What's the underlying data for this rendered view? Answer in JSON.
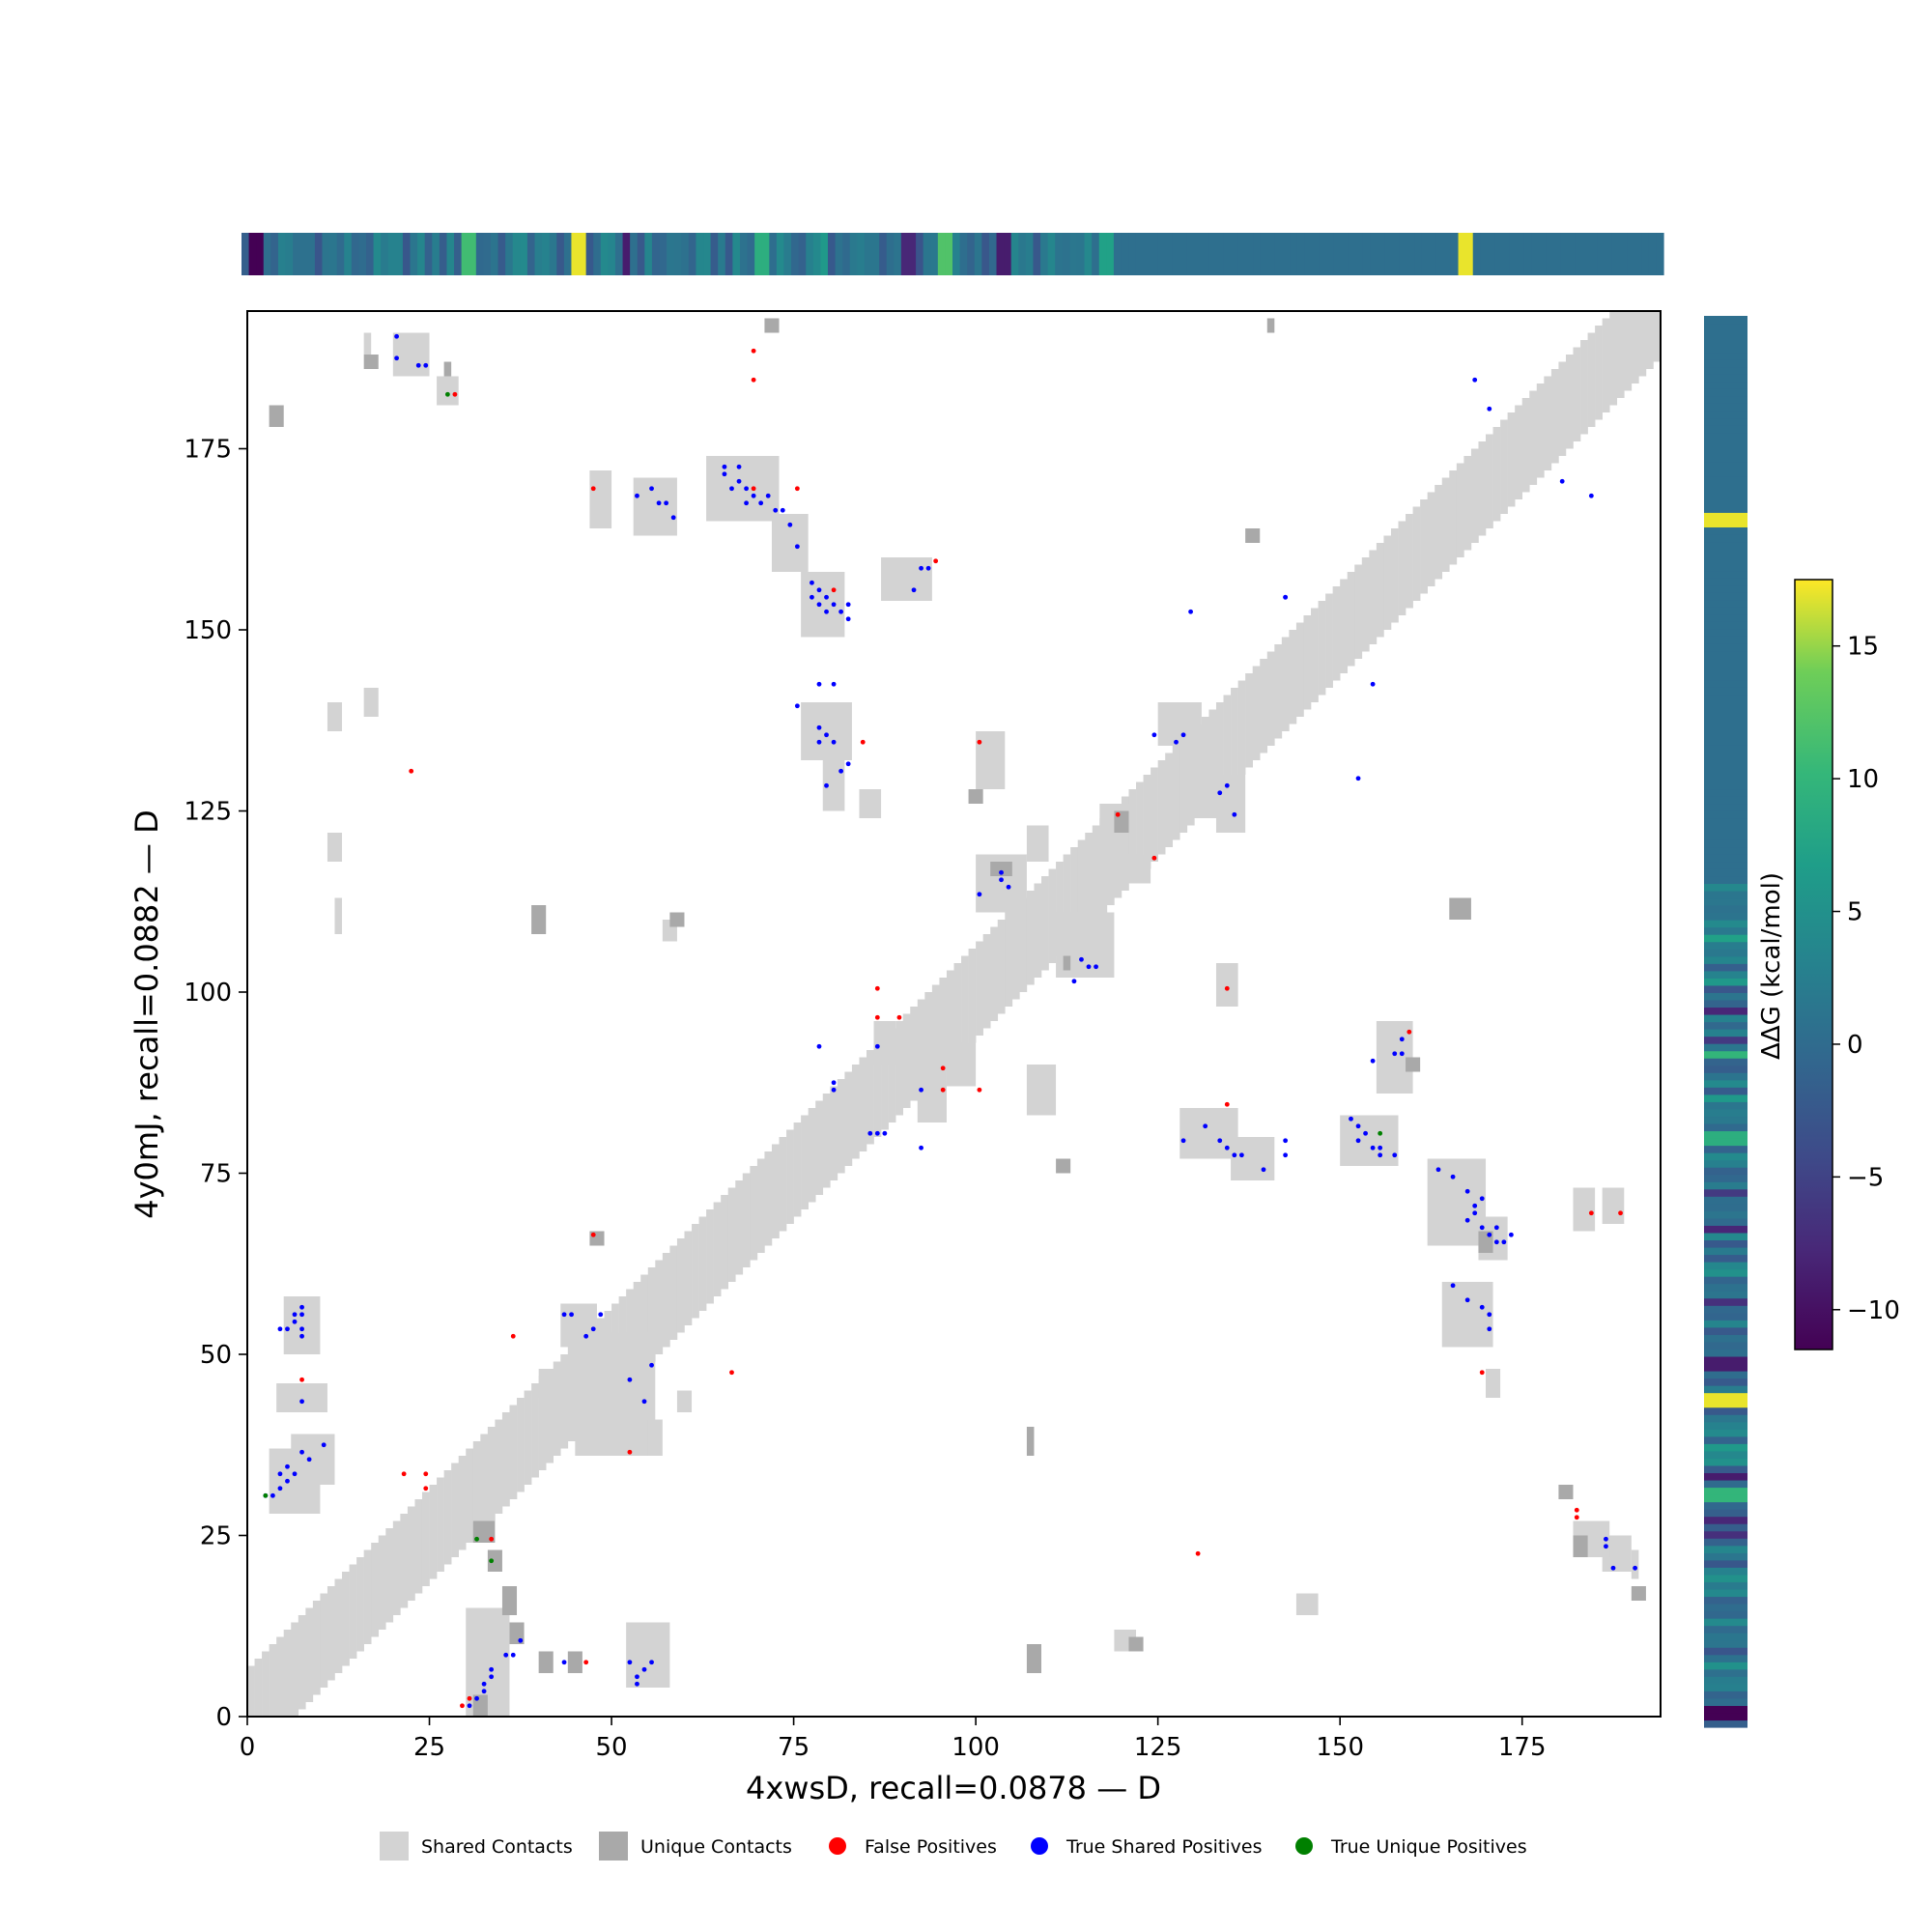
{
  "chart_data": {
    "type": "heatmap",
    "subtype": "contact-map",
    "xlabel": "4xwsD, recall=0.0878 — D",
    "ylabel": "4y0mJ, recall=0.0882 — D",
    "xlim": [
      0,
      194
    ],
    "ylim": [
      0,
      194
    ],
    "x_ticks": [
      0,
      25,
      50,
      75,
      100,
      125,
      150,
      175
    ],
    "y_ticks": [
      0,
      25,
      50,
      75,
      100,
      125,
      150,
      175
    ],
    "colorbar": {
      "label": "ΔΔG (kcal/mol)",
      "range": [
        -11.5,
        17.5
      ],
      "ticks": [
        -10,
        -5,
        0,
        5,
        10,
        15
      ],
      "colormap": "viridis"
    },
    "legend": {
      "placement": "bottom",
      "entries": [
        {
          "label": "Shared Contacts",
          "marker": "square",
          "color": "#d3d3d3"
        },
        {
          "label": "Unique Contacts",
          "marker": "square",
          "color": "#a9a9a9"
        },
        {
          "label": "False Positives",
          "marker": "circle",
          "color": "#ff0000"
        },
        {
          "label": "True Shared Positives",
          "marker": "circle",
          "color": "#0000ff"
        },
        {
          "label": "True Unique Positives",
          "marker": "circle",
          "color": "#008000"
        }
      ]
    },
    "colors": {
      "shared": "#d3d3d3",
      "unique": "#a9a9a9",
      "false_pos": "#ff0000",
      "true_shared": "#0000ff",
      "true_unique": "#008000"
    },
    "diagonal_band": {
      "from": 0,
      "to": 194,
      "half_width": 6
    },
    "shared_blocks": [
      [
        30,
        0,
        35,
        14
      ],
      [
        52,
        4,
        57,
        12
      ],
      [
        45,
        36,
        55,
        52
      ],
      [
        3,
        28,
        9,
        36
      ],
      [
        5,
        50,
        9,
        57
      ],
      [
        4,
        42,
        10,
        45
      ],
      [
        6,
        32,
        11,
        38
      ],
      [
        12,
        108,
        12,
        112
      ],
      [
        11,
        118,
        12,
        121
      ],
      [
        16,
        138,
        17,
        141
      ],
      [
        11,
        136,
        12,
        139
      ],
      [
        20,
        185,
        24,
        190
      ],
      [
        26,
        181,
        28,
        184
      ],
      [
        16,
        188,
        16,
        190
      ],
      [
        63,
        165,
        72,
        173
      ],
      [
        72,
        158,
        76,
        165
      ],
      [
        53,
        163,
        58,
        170
      ],
      [
        47,
        170,
        48,
        171
      ],
      [
        76,
        149,
        81,
        157
      ],
      [
        87,
        154,
        93,
        159
      ],
      [
        76,
        132,
        82,
        139
      ],
      [
        79,
        125,
        81,
        131
      ],
      [
        84,
        124,
        86,
        127
      ],
      [
        100,
        128,
        103,
        135
      ],
      [
        111,
        102,
        118,
        110
      ],
      [
        100,
        111,
        106,
        118
      ],
      [
        107,
        118,
        109,
        122
      ],
      [
        128,
        77,
        135,
        83
      ],
      [
        135,
        74,
        140,
        79
      ],
      [
        150,
        76,
        157,
        82
      ],
      [
        155,
        86,
        159,
        95
      ],
      [
        162,
        65,
        169,
        76
      ],
      [
        169,
        63,
        172,
        68
      ],
      [
        164,
        51,
        170,
        59
      ],
      [
        170,
        44,
        171,
        47
      ],
      [
        125,
        134,
        130,
        139
      ],
      [
        133,
        122,
        136,
        129
      ],
      [
        117,
        122,
        120,
        125
      ],
      [
        120,
        115,
        123,
        118
      ],
      [
        133,
        98,
        135,
        103
      ],
      [
        128,
        124,
        133,
        126
      ],
      [
        182,
        67,
        184,
        72
      ],
      [
        186,
        68,
        188,
        72
      ],
      [
        190,
        19,
        190,
        22
      ],
      [
        186,
        20,
        189,
        24
      ],
      [
        182,
        22,
        186,
        26
      ],
      [
        144,
        14,
        146,
        16
      ],
      [
        119,
        9,
        121,
        11
      ],
      [
        47,
        164,
        49,
        171
      ],
      [
        57,
        107,
        58,
        109
      ],
      [
        86,
        90,
        88,
        95
      ],
      [
        92,
        82,
        95,
        88
      ],
      [
        96,
        87,
        99,
        92
      ],
      [
        107,
        83,
        110,
        89
      ],
      [
        40,
        44,
        42,
        47
      ],
      [
        43,
        51,
        47,
        56
      ],
      [
        55,
        36,
        56,
        40
      ],
      [
        59,
        42,
        60,
        44
      ]
    ],
    "unique_blocks": [
      [
        3,
        178,
        4,
        180
      ],
      [
        16,
        186,
        17,
        187
      ],
      [
        27,
        185,
        27,
        186
      ],
      [
        71,
        191,
        72,
        192
      ],
      [
        140,
        191,
        140,
        192
      ],
      [
        112,
        103,
        112,
        104
      ],
      [
        165,
        110,
        167,
        112
      ],
      [
        137,
        162,
        138,
        163
      ],
      [
        99,
        126,
        100,
        127
      ],
      [
        119,
        122,
        120,
        124
      ],
      [
        39,
        108,
        40,
        111
      ],
      [
        58,
        109,
        59,
        110
      ],
      [
        111,
        75,
        112,
        76
      ],
      [
        107,
        36,
        107,
        39
      ],
      [
        107,
        6,
        108,
        9
      ],
      [
        121,
        9,
        122,
        10
      ],
      [
        31,
        24,
        33,
        26
      ],
      [
        33,
        20,
        34,
        22
      ],
      [
        35,
        14,
        36,
        17
      ],
      [
        36,
        10,
        37,
        12
      ],
      [
        40,
        6,
        41,
        8
      ],
      [
        44,
        6,
        45,
        8
      ],
      [
        31,
        0,
        32,
        2
      ],
      [
        169,
        64,
        170,
        66
      ],
      [
        180,
        30,
        181,
        31
      ],
      [
        182,
        22,
        183,
        24
      ],
      [
        190,
        16,
        191,
        17
      ],
      [
        47,
        65,
        48,
        66
      ],
      [
        159,
        89,
        160,
        90
      ],
      [
        102,
        116,
        104,
        117
      ]
    ],
    "false_positives": [
      [
        28,
        182
      ],
      [
        69,
        188
      ],
      [
        69,
        184
      ],
      [
        47,
        169
      ],
      [
        94,
        159
      ],
      [
        80,
        155
      ],
      [
        84,
        134
      ],
      [
        100,
        134
      ],
      [
        22,
        130
      ],
      [
        119,
        124
      ],
      [
        124,
        118
      ],
      [
        86,
        100
      ],
      [
        86,
        96
      ],
      [
        89,
        96
      ],
      [
        95,
        89
      ],
      [
        95,
        86
      ],
      [
        100,
        86
      ],
      [
        134,
        100
      ],
      [
        134,
        84
      ],
      [
        159,
        94
      ],
      [
        184,
        69
      ],
      [
        188,
        69
      ],
      [
        169,
        47
      ],
      [
        7,
        46
      ],
      [
        36,
        52
      ],
      [
        66,
        47
      ],
      [
        52,
        36
      ],
      [
        47,
        66
      ],
      [
        21,
        33
      ],
      [
        24,
        33
      ],
      [
        24,
        31
      ],
      [
        33,
        24
      ],
      [
        182,
        28
      ],
      [
        182,
        27
      ],
      [
        130,
        22
      ],
      [
        46,
        7
      ],
      [
        30,
        2
      ],
      [
        29,
        1
      ],
      [
        69,
        169
      ],
      [
        75,
        169
      ]
    ],
    "true_shared": [
      [
        20,
        190
      ],
      [
        20,
        187
      ],
      [
        23,
        186
      ],
      [
        24,
        186
      ],
      [
        65,
        172
      ],
      [
        65,
        171
      ],
      [
        67,
        172
      ],
      [
        66,
        169
      ],
      [
        67,
        170
      ],
      [
        68,
        169
      ],
      [
        68,
        167
      ],
      [
        69,
        168
      ],
      [
        70,
        167
      ],
      [
        71,
        168
      ],
      [
        72,
        166
      ],
      [
        73,
        166
      ],
      [
        74,
        164
      ],
      [
        75,
        161
      ],
      [
        55,
        169
      ],
      [
        53,
        168
      ],
      [
        56,
        167
      ],
      [
        57,
        167
      ],
      [
        58,
        165
      ],
      [
        77,
        156
      ],
      [
        78,
        155
      ],
      [
        77,
        154
      ],
      [
        79,
        154
      ],
      [
        78,
        153
      ],
      [
        80,
        153
      ],
      [
        79,
        152
      ],
      [
        82,
        153
      ],
      [
        81,
        152
      ],
      [
        82,
        151
      ],
      [
        93,
        158
      ],
      [
        91,
        155
      ],
      [
        92,
        158
      ],
      [
        78,
        142
      ],
      [
        80,
        142
      ],
      [
        75,
        139
      ],
      [
        78,
        136
      ],
      [
        79,
        135
      ],
      [
        78,
        134
      ],
      [
        80,
        134
      ],
      [
        82,
        131
      ],
      [
        81,
        130
      ],
      [
        79,
        128
      ],
      [
        124,
        135
      ],
      [
        128,
        135
      ],
      [
        127,
        134
      ],
      [
        134,
        128
      ],
      [
        133,
        127
      ],
      [
        135,
        124
      ],
      [
        103,
        115
      ],
      [
        103,
        116
      ],
      [
        104,
        114
      ],
      [
        100,
        113
      ],
      [
        113,
        101
      ],
      [
        114,
        104
      ],
      [
        115,
        103
      ],
      [
        116,
        103
      ],
      [
        78,
        92
      ],
      [
        86,
        92
      ],
      [
        80,
        87
      ],
      [
        80,
        86
      ],
      [
        85,
        80
      ],
      [
        86,
        80
      ],
      [
        87,
        80
      ],
      [
        92,
        86
      ],
      [
        92,
        78
      ],
      [
        128,
        79
      ],
      [
        131,
        81
      ],
      [
        133,
        79
      ],
      [
        134,
        78
      ],
      [
        135,
        77
      ],
      [
        136,
        77
      ],
      [
        139,
        75
      ],
      [
        142,
        79
      ],
      [
        142,
        77
      ],
      [
        151,
        82
      ],
      [
        152,
        81
      ],
      [
        152,
        79
      ],
      [
        153,
        80
      ],
      [
        154,
        78
      ],
      [
        155,
        77
      ],
      [
        155,
        78
      ],
      [
        157,
        77
      ],
      [
        154,
        90
      ],
      [
        157,
        91
      ],
      [
        158,
        93
      ],
      [
        163,
        75
      ],
      [
        165,
        74
      ],
      [
        167,
        72
      ],
      [
        168,
        70
      ],
      [
        167,
        68
      ],
      [
        168,
        69
      ],
      [
        169,
        67
      ],
      [
        170,
        66
      ],
      [
        171,
        65
      ],
      [
        172,
        65
      ],
      [
        173,
        66
      ],
      [
        169,
        71
      ],
      [
        171,
        67
      ],
      [
        165,
        59
      ],
      [
        167,
        57
      ],
      [
        169,
        56
      ],
      [
        170,
        55
      ],
      [
        170,
        53
      ],
      [
        184,
        168
      ],
      [
        180,
        170
      ],
      [
        168,
        184
      ],
      [
        170,
        180
      ],
      [
        152,
        129
      ],
      [
        142,
        154
      ],
      [
        129,
        152
      ],
      [
        154,
        142
      ],
      [
        186,
        24
      ],
      [
        186,
        23
      ],
      [
        187,
        20
      ],
      [
        190,
        20
      ],
      [
        4,
        53
      ],
      [
        5,
        53
      ],
      [
        6,
        54
      ],
      [
        6,
        55
      ],
      [
        7,
        52
      ],
      [
        7,
        53
      ],
      [
        7,
        55
      ],
      [
        7,
        56
      ],
      [
        3,
        30
      ],
      [
        4,
        31
      ],
      [
        5,
        32
      ],
      [
        4,
        33
      ],
      [
        5,
        34
      ],
      [
        6,
        33
      ],
      [
        7,
        36
      ],
      [
        8,
        35
      ],
      [
        10,
        37
      ],
      [
        7,
        43
      ],
      [
        30,
        1
      ],
      [
        31,
        2
      ],
      [
        32,
        4
      ],
      [
        33,
        5
      ],
      [
        33,
        6
      ],
      [
        35,
        8
      ],
      [
        36,
        8
      ],
      [
        37,
        10
      ],
      [
        32,
        3
      ],
      [
        43,
        7
      ],
      [
        52,
        7
      ],
      [
        53,
        5
      ],
      [
        54,
        6
      ],
      [
        55,
        7
      ],
      [
        53,
        4
      ],
      [
        52,
        46
      ],
      [
        54,
        43
      ],
      [
        43,
        55
      ],
      [
        46,
        52
      ],
      [
        44,
        55
      ],
      [
        47,
        53
      ],
      [
        48,
        55
      ],
      [
        55,
        48
      ],
      [
        2,
        30
      ],
      [
        142,
        154
      ],
      [
        158,
        91
      ]
    ],
    "true_unique": [
      [
        27,
        182
      ],
      [
        31,
        24
      ],
      [
        33,
        21
      ],
      [
        155,
        80
      ],
      [
        2,
        30
      ]
    ],
    "top_track": {
      "bins": 194,
      "spikes": [
        [
          1,
          -11.5
        ],
        [
          2,
          -11.5
        ],
        [
          30,
          11
        ],
        [
          31,
          11
        ],
        [
          38,
          4
        ],
        [
          45,
          17
        ],
        [
          46,
          17
        ],
        [
          52,
          -9
        ],
        [
          70,
          9
        ],
        [
          71,
          9
        ],
        [
          73,
          4
        ],
        [
          79,
          6
        ],
        [
          90,
          -8
        ],
        [
          91,
          -8
        ],
        [
          92,
          -3
        ],
        [
          95,
          12
        ],
        [
          96,
          12
        ],
        [
          103,
          -9
        ],
        [
          104,
          -9
        ],
        [
          117,
          7
        ],
        [
          118,
          7
        ],
        [
          166,
          17
        ],
        [
          167,
          17
        ]
      ]
    },
    "side_track": {
      "bins": 194,
      "spikes": [
        [
          165,
          17
        ],
        [
          166,
          17
        ],
        [
          110,
          4
        ],
        [
          108,
          7
        ],
        [
          102,
          6
        ],
        [
          98,
          -8
        ],
        [
          94,
          -6
        ],
        [
          92,
          10
        ],
        [
          88,
          4
        ],
        [
          86,
          6
        ],
        [
          81,
          9
        ],
        [
          80,
          9
        ],
        [
          78,
          4
        ],
        [
          73,
          -6
        ],
        [
          68,
          -8
        ],
        [
          62,
          5
        ],
        [
          58,
          -7
        ],
        [
          50,
          -9
        ],
        [
          49,
          -9
        ],
        [
          45,
          17
        ],
        [
          44,
          17
        ],
        [
          40,
          4
        ],
        [
          38,
          6
        ],
        [
          36,
          5
        ],
        [
          34,
          -9
        ],
        [
          32,
          10
        ],
        [
          31,
          10
        ],
        [
          28,
          -8
        ],
        [
          26,
          -7
        ],
        [
          20,
          5
        ],
        [
          14,
          4
        ],
        [
          8,
          5
        ],
        [
          2,
          -11.5
        ],
        [
          1,
          -11.5
        ]
      ]
    }
  }
}
